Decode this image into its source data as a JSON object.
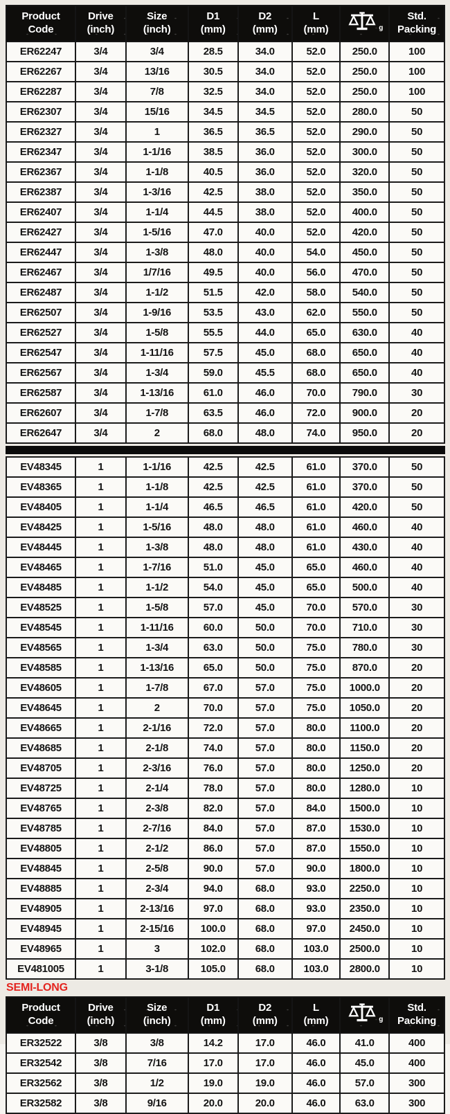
{
  "colors": {
    "accent_red": "#e4251f",
    "header_bg": "#0e0d0b",
    "grid_line": "#1b1b1b",
    "page_bg": "#edeae4"
  },
  "header": {
    "product": {
      "line1": "Product",
      "line2": "Code"
    },
    "drive": {
      "line1": "Drive",
      "line2": "(inch)"
    },
    "size": {
      "line1": "Size",
      "line2": "(inch)"
    },
    "d1": {
      "line1": "D1",
      "line2": "(mm)"
    },
    "d2": {
      "line1": "D2",
      "line2": "(mm)"
    },
    "l": {
      "line1": "L",
      "line2": "(mm)"
    },
    "weight": {
      "icon": "balance-scale-icon",
      "subscript": "g"
    },
    "std": {
      "line1": "Std.",
      "line2": "Packing"
    }
  },
  "sections": {
    "drive_3_4": {
      "rows": [
        [
          "ER62247",
          "3/4",
          "3/4",
          "28.5",
          "34.0",
          "52.0",
          "250.0",
          "100"
        ],
        [
          "ER62267",
          "3/4",
          "13/16",
          "30.5",
          "34.0",
          "52.0",
          "250.0",
          "100"
        ],
        [
          "ER62287",
          "3/4",
          "7/8",
          "32.5",
          "34.0",
          "52.0",
          "250.0",
          "100"
        ],
        [
          "ER62307",
          "3/4",
          "15/16",
          "34.5",
          "34.5",
          "52.0",
          "280.0",
          "50"
        ],
        [
          "ER62327",
          "3/4",
          "1",
          "36.5",
          "36.5",
          "52.0",
          "290.0",
          "50"
        ],
        [
          "ER62347",
          "3/4",
          "1-1/16",
          "38.5",
          "36.0",
          "52.0",
          "300.0",
          "50"
        ],
        [
          "ER62367",
          "3/4",
          "1-1/8",
          "40.5",
          "36.0",
          "52.0",
          "320.0",
          "50"
        ],
        [
          "ER62387",
          "3/4",
          "1-3/16",
          "42.5",
          "38.0",
          "52.0",
          "350.0",
          "50"
        ],
        [
          "ER62407",
          "3/4",
          "1-1/4",
          "44.5",
          "38.0",
          "52.0",
          "400.0",
          "50"
        ],
        [
          "ER62427",
          "3/4",
          "1-5/16",
          "47.0",
          "40.0",
          "52.0",
          "420.0",
          "50"
        ],
        [
          "ER62447",
          "3/4",
          "1-3/8",
          "48.0",
          "40.0",
          "54.0",
          "450.0",
          "50"
        ],
        [
          "ER62467",
          "3/4",
          "1/7/16",
          "49.5",
          "40.0",
          "56.0",
          "470.0",
          "50"
        ],
        [
          "ER62487",
          "3/4",
          "1-1/2",
          "51.5",
          "42.0",
          "58.0",
          "540.0",
          "50"
        ],
        [
          "ER62507",
          "3/4",
          "1-9/16",
          "53.5",
          "43.0",
          "62.0",
          "550.0",
          "50"
        ],
        [
          "ER62527",
          "3/4",
          "1-5/8",
          "55.5",
          "44.0",
          "65.0",
          "630.0",
          "40"
        ],
        [
          "ER62547",
          "3/4",
          "1-11/16",
          "57.5",
          "45.0",
          "68.0",
          "650.0",
          "40"
        ],
        [
          "ER62567",
          "3/4",
          "1-3/4",
          "59.0",
          "45.5",
          "68.0",
          "650.0",
          "40"
        ],
        [
          "ER62587",
          "3/4",
          "1-13/16",
          "61.0",
          "46.0",
          "70.0",
          "790.0",
          "30"
        ],
        [
          "ER62607",
          "3/4",
          "1-7/8",
          "63.5",
          "46.0",
          "72.0",
          "900.0",
          "20"
        ],
        [
          "ER62647",
          "3/4",
          "2",
          "68.0",
          "48.0",
          "74.0",
          "950.0",
          "20"
        ]
      ]
    },
    "drive_1": {
      "rows": [
        [
          "EV48345",
          "1",
          "1-1/16",
          "42.5",
          "42.5",
          "61.0",
          "370.0",
          "50"
        ],
        [
          "EV48365",
          "1",
          "1-1/8",
          "42.5",
          "42.5",
          "61.0",
          "370.0",
          "50"
        ],
        [
          "EV48405",
          "1",
          "1-1/4",
          "46.5",
          "46.5",
          "61.0",
          "420.0",
          "50"
        ],
        [
          "EV48425",
          "1",
          "1-5/16",
          "48.0",
          "48.0",
          "61.0",
          "460.0",
          "40"
        ],
        [
          "EV48445",
          "1",
          "1-3/8",
          "48.0",
          "48.0",
          "61.0",
          "430.0",
          "40"
        ],
        [
          "EV48465",
          "1",
          "1-7/16",
          "51.0",
          "45.0",
          "65.0",
          "460.0",
          "40"
        ],
        [
          "EV48485",
          "1",
          "1-1/2",
          "54.0",
          "45.0",
          "65.0",
          "500.0",
          "40"
        ],
        [
          "EV48525",
          "1",
          "1-5/8",
          "57.0",
          "45.0",
          "70.0",
          "570.0",
          "30"
        ],
        [
          "EV48545",
          "1",
          "1-11/16",
          "60.0",
          "50.0",
          "70.0",
          "710.0",
          "30"
        ],
        [
          "EV48565",
          "1",
          "1-3/4",
          "63.0",
          "50.0",
          "75.0",
          "780.0",
          "30"
        ],
        [
          "EV48585",
          "1",
          "1-13/16",
          "65.0",
          "50.0",
          "75.0",
          "870.0",
          "20"
        ],
        [
          "EV48605",
          "1",
          "1-7/8",
          "67.0",
          "57.0",
          "75.0",
          "1000.0",
          "20"
        ],
        [
          "EV48645",
          "1",
          "2",
          "70.0",
          "57.0",
          "75.0",
          "1050.0",
          "20"
        ],
        [
          "EV48665",
          "1",
          "2-1/16",
          "72.0",
          "57.0",
          "80.0",
          "1100.0",
          "20"
        ],
        [
          "EV48685",
          "1",
          "2-1/8",
          "74.0",
          "57.0",
          "80.0",
          "1150.0",
          "20"
        ],
        [
          "EV48705",
          "1",
          "2-3/16",
          "76.0",
          "57.0",
          "80.0",
          "1250.0",
          "20"
        ],
        [
          "EV48725",
          "1",
          "2-1/4",
          "78.0",
          "57.0",
          "80.0",
          "1280.0",
          "10"
        ],
        [
          "EV48765",
          "1",
          "2-3/8",
          "82.0",
          "57.0",
          "84.0",
          "1500.0",
          "10"
        ],
        [
          "EV48785",
          "1",
          "2-7/16",
          "84.0",
          "57.0",
          "87.0",
          "1530.0",
          "10"
        ],
        [
          "EV48805",
          "1",
          "2-1/2",
          "86.0",
          "57.0",
          "87.0",
          "1550.0",
          "10"
        ],
        [
          "EV48845",
          "1",
          "2-5/8",
          "90.0",
          "57.0",
          "90.0",
          "1800.0",
          "10"
        ],
        [
          "EV48885",
          "1",
          "2-3/4",
          "94.0",
          "68.0",
          "93.0",
          "2250.0",
          "10"
        ],
        [
          "EV48905",
          "1",
          "2-13/16",
          "97.0",
          "68.0",
          "93.0",
          "2350.0",
          "10"
        ],
        [
          "EV48945",
          "1",
          "2-15/16",
          "100.0",
          "68.0",
          "97.0",
          "2450.0",
          "10"
        ],
        [
          "EV48965",
          "1",
          "3",
          "102.0",
          "68.0",
          "103.0",
          "2500.0",
          "10"
        ],
        [
          "EV481005",
          "1",
          "3-1/8",
          "105.0",
          "68.0",
          "103.0",
          "2800.0",
          "10"
        ]
      ]
    },
    "semi_long": {
      "label": "SEMI-LONG",
      "rows": [
        [
          "ER32522",
          "3/8",
          "3/8",
          "14.2",
          "17.0",
          "46.0",
          "41.0",
          "400"
        ],
        [
          "ER32542",
          "3/8",
          "7/16",
          "17.0",
          "17.0",
          "46.0",
          "45.0",
          "400"
        ],
        [
          "ER32562",
          "3/8",
          "1/2",
          "19.0",
          "19.0",
          "46.0",
          "57.0",
          "300"
        ],
        [
          "ER32582",
          "3/8",
          "9/16",
          "20.0",
          "20.0",
          "46.0",
          "63.0",
          "300"
        ]
      ]
    }
  }
}
